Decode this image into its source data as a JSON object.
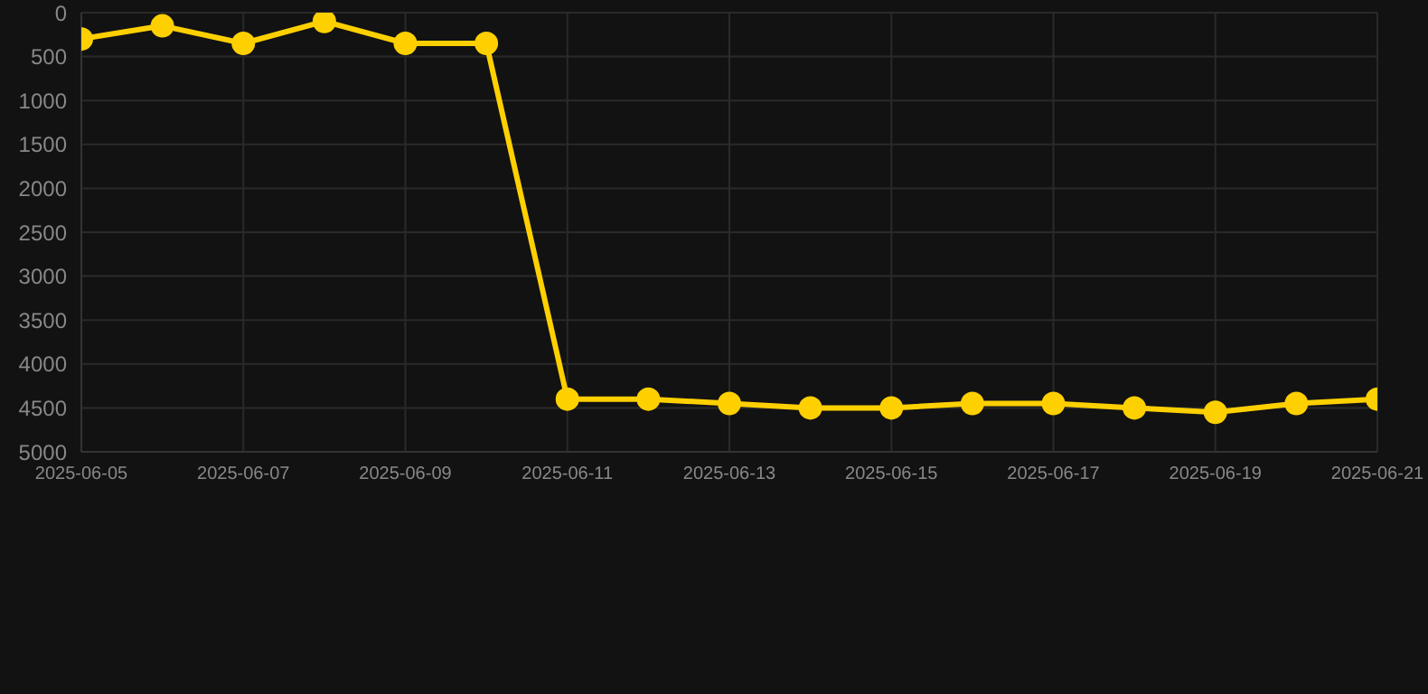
{
  "chart_data": {
    "type": "line",
    "x": [
      "2025-06-05",
      "2025-06-06",
      "2025-06-07",
      "2025-06-08",
      "2025-06-09",
      "2025-06-10",
      "2025-06-11",
      "2025-06-12",
      "2025-06-13",
      "2025-06-14",
      "2025-06-15",
      "2025-06-16",
      "2025-06-17",
      "2025-06-18",
      "2025-06-19",
      "2025-06-20",
      "2025-06-21"
    ],
    "series": [
      {
        "color": "#ffd000",
        "values": [
          300,
          150,
          350,
          100,
          350,
          350,
          4400,
          4400,
          4450,
          4500,
          4500,
          4450,
          4450,
          4500,
          4550,
          4450,
          4400
        ]
      }
    ],
    "xlim": [
      "2025-06-05",
      "2025-06-21"
    ],
    "xticks": [
      "2025-06-05",
      "2025-06-07",
      "2025-06-09",
      "2025-06-11",
      "2025-06-13",
      "2025-06-15",
      "2025-06-17",
      "2025-06-19",
      "2025-06-21"
    ],
    "ylim": [
      5000,
      0
    ],
    "yticks": [
      0,
      500,
      1000,
      1500,
      2000,
      2500,
      3000,
      3500,
      4000,
      4500,
      5000
    ],
    "grid": true,
    "marker": "circle",
    "line_style": "solid"
  }
}
